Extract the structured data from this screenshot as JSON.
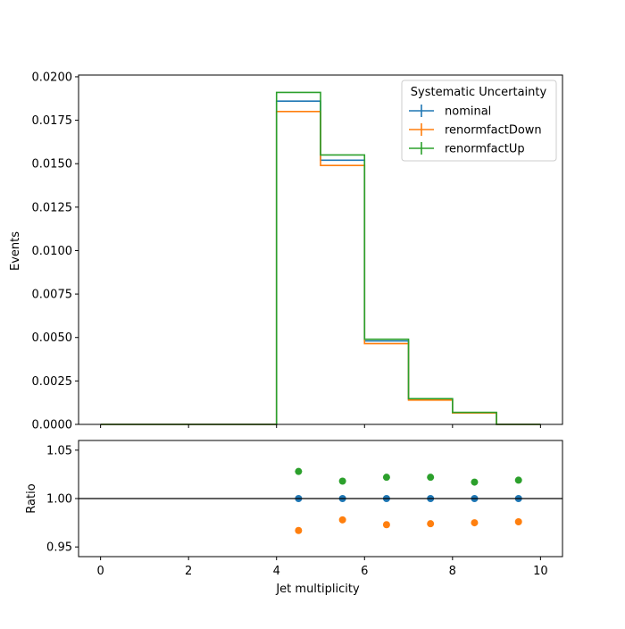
{
  "chart_data": [
    {
      "type": "line",
      "subtype": "step-histogram",
      "xlabel": "",
      "ylabel": "Events",
      "xlim": [
        -0.5,
        10.5
      ],
      "ylim": [
        0.0,
        0.0201
      ],
      "x_tick_labels_shown": false,
      "y_ticks": [
        "0.0000",
        "0.0025",
        "0.0050",
        "0.0075",
        "0.0100",
        "0.0125",
        "0.0150",
        "0.0175",
        "0.0200"
      ],
      "bin_edges": [
        0,
        1,
        2,
        3,
        4,
        5,
        6,
        7,
        8,
        9,
        10
      ],
      "legend": {
        "title": "Systematic Uncertainty",
        "placement": "top-right"
      },
      "series": [
        {
          "name": "nominal",
          "color": "#1f77b4",
          "values": [
            0,
            0,
            0,
            0,
            0.0186,
            0.0152,
            0.0048,
            0.00145,
            0.00068,
            0
          ]
        },
        {
          "name": "renormfactDown",
          "color": "#ff7f0e",
          "values": [
            0,
            0,
            0,
            0,
            0.018,
            0.0149,
            0.00465,
            0.0014,
            0.00066,
            0
          ]
        },
        {
          "name": "renormfactUp",
          "color": "#2ca02c",
          "values": [
            0,
            0,
            0,
            0,
            0.0191,
            0.0155,
            0.0049,
            0.00148,
            0.00069,
            0
          ]
        }
      ]
    },
    {
      "type": "scatter",
      "xlabel": "Jet multiplicity",
      "ylabel": "Ratio",
      "xlim": [
        -0.5,
        10.5
      ],
      "ylim": [
        0.94,
        1.06
      ],
      "x_ticks": [
        "0",
        "2",
        "4",
        "6",
        "8",
        "10"
      ],
      "y_ticks": [
        "0.95",
        "1.00",
        "1.05"
      ],
      "reference_line": 1.0,
      "series": [
        {
          "name": "nominal",
          "color": "#1f77b4",
          "x": [
            4.5,
            5.5,
            6.5,
            7.5,
            8.5,
            9.5
          ],
          "y": [
            1.0,
            1.0,
            1.0,
            1.0,
            1.0,
            1.0
          ]
        },
        {
          "name": "renormfactDown",
          "color": "#ff7f0e",
          "x": [
            4.5,
            5.5,
            6.5,
            7.5,
            8.5,
            9.5
          ],
          "y": [
            0.967,
            0.978,
            0.973,
            0.974,
            0.975,
            0.976
          ]
        },
        {
          "name": "renormfactUp",
          "color": "#2ca02c",
          "x": [
            4.5,
            5.5,
            6.5,
            7.5,
            8.5,
            9.5
          ],
          "y": [
            1.028,
            1.018,
            1.022,
            1.022,
            1.017,
            1.019
          ]
        }
      ]
    }
  ]
}
